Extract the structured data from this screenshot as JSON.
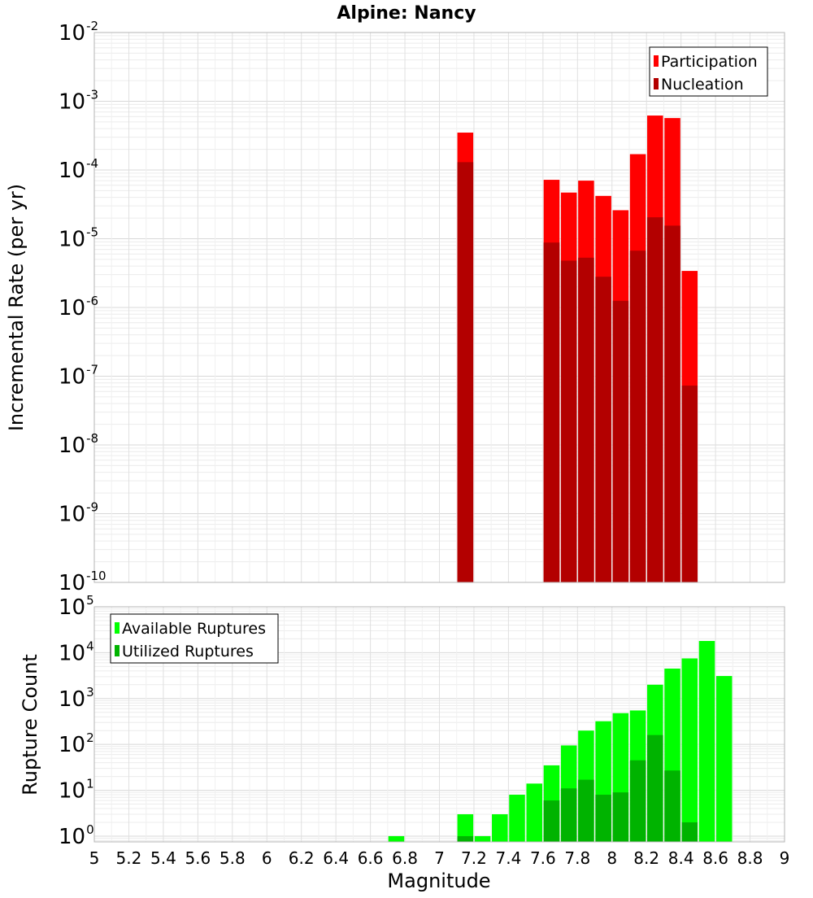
{
  "chart_data": [
    {
      "type": "bar",
      "title": "Alpine: Nancy",
      "xlabel": "",
      "ylabel": "Incremental Rate (per yr)",
      "y_scale": "log",
      "ylim": [
        1e-10,
        0.01
      ],
      "xlim": [
        5,
        9
      ],
      "grid": true,
      "legend_position": "top-right",
      "series": [
        {
          "name": "Participation",
          "color": "#ff0000",
          "x": [
            7.15,
            7.65,
            7.75,
            7.85,
            7.95,
            8.05,
            8.15,
            8.25,
            8.35,
            8.45
          ],
          "values": [
            0.00035,
            7.2e-05,
            4.7e-05,
            7e-05,
            4.2e-05,
            2.6e-05,
            0.00017,
            0.00062,
            0.00057,
            3.4e-06
          ]
        },
        {
          "name": "Nucleation",
          "color": "#b30000",
          "x": [
            7.15,
            7.65,
            7.75,
            7.85,
            7.95,
            8.05,
            8.15,
            8.25,
            8.35,
            8.45
          ],
          "values": [
            0.00013,
            8.8e-06,
            4.8e-06,
            5.3e-06,
            2.8e-06,
            1.25e-06,
            6.7e-06,
            2.05e-05,
            1.55e-05,
            7.3e-08
          ]
        }
      ]
    },
    {
      "type": "bar",
      "xlabel": "Magnitude",
      "ylabel": "Rupture Count",
      "y_scale": "log",
      "ylim": [
        0.75,
        100000.0
      ],
      "xlim": [
        5,
        9
      ],
      "x_ticks": [
        "5",
        "5.2",
        "5.4",
        "5.6",
        "5.8",
        "6",
        "6.2",
        "6.4",
        "6.6",
        "6.8",
        "7",
        "7.2",
        "7.4",
        "7.6",
        "7.8",
        "8",
        "8.2",
        "8.4",
        "8.6",
        "8.8",
        "9"
      ],
      "grid": true,
      "legend_position": "top-left",
      "series": [
        {
          "name": "Available Ruptures",
          "color": "#00ff00",
          "x": [
            6.75,
            7.15,
            7.25,
            7.35,
            7.45,
            7.55,
            7.65,
            7.75,
            7.85,
            7.95,
            8.05,
            8.15,
            8.25,
            8.35,
            8.45,
            8.55,
            8.65
          ],
          "values": [
            1,
            3,
            1,
            3,
            8,
            14,
            35,
            95,
            200,
            320,
            480,
            550,
            2000,
            4500,
            7500,
            18000,
            3100
          ]
        },
        {
          "name": "Utilized Ruptures",
          "color": "#00b300",
          "x": [
            7.15,
            7.65,
            7.75,
            7.85,
            7.95,
            8.05,
            8.15,
            8.25,
            8.35,
            8.45
          ],
          "values": [
            1,
            6,
            11,
            17,
            8,
            9,
            45,
            160,
            27,
            2
          ]
        }
      ]
    }
  ]
}
